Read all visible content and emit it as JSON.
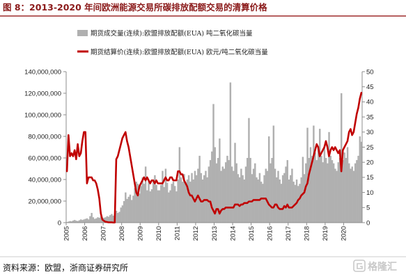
{
  "figure": {
    "source": "资料来源：欧盟，浙商证券研究所",
    "watermark": "格隆汇"
  },
  "colors": {
    "title": "#8b1a1a",
    "title_rule": "#9e2a2b",
    "volume": "#b0b0b0",
    "price": "#c00000",
    "axis": "#8c8c8c"
  },
  "chart_data": {
    "type": "bar",
    "title": "图 8：2013-2020 年间欧洲能源交易所碳排放配额交易的清算价格",
    "legend": "top-left",
    "grid": false,
    "x_axis": {
      "min": "2005-01",
      "max": "2021-01",
      "ticks": [
        "2005",
        "2006",
        "2007",
        "2008",
        "2009",
        "2010",
        "2011",
        "2012",
        "2013",
        "2014",
        "2015",
        "2016",
        "2017",
        "2018",
        "2019",
        "2020"
      ]
    },
    "y_left": {
      "min": 0,
      "max": 140000000,
      "ticks": [
        "0",
        "20,000,000",
        "40,000,000",
        "60,000,000",
        "80,000,000",
        "100,000,000",
        "120,000,000",
        "140,000,000"
      ]
    },
    "y_right": {
      "min": 0,
      "max": 50,
      "ticks": [
        "0",
        "5",
        "10",
        "15",
        "20",
        "25",
        "30",
        "35",
        "40",
        "45",
        "50"
      ]
    },
    "x": [
      "2005-01",
      "2005-02",
      "2005-03",
      "2005-04",
      "2005-05",
      "2005-06",
      "2005-07",
      "2005-08",
      "2005-09",
      "2005-10",
      "2005-11",
      "2005-12",
      "2006-01",
      "2006-02",
      "2006-03",
      "2006-04",
      "2006-05",
      "2006-06",
      "2006-07",
      "2006-08",
      "2006-09",
      "2006-10",
      "2006-11",
      "2006-12",
      "2007-01",
      "2007-02",
      "2007-03",
      "2007-04",
      "2007-05",
      "2007-06",
      "2007-07",
      "2007-08",
      "2007-09",
      "2007-10",
      "2007-11",
      "2007-12",
      "2008-01",
      "2008-02",
      "2008-03",
      "2008-04",
      "2008-05",
      "2008-06",
      "2008-07",
      "2008-08",
      "2008-09",
      "2008-10",
      "2008-11",
      "2008-12",
      "2009-01",
      "2009-02",
      "2009-03",
      "2009-04",
      "2009-05",
      "2009-06",
      "2009-07",
      "2009-08",
      "2009-09",
      "2009-10",
      "2009-11",
      "2009-12",
      "2010-01",
      "2010-02",
      "2010-03",
      "2010-04",
      "2010-05",
      "2010-06",
      "2010-07",
      "2010-08",
      "2010-09",
      "2010-10",
      "2010-11",
      "2010-12",
      "2011-01",
      "2011-02",
      "2011-03",
      "2011-04",
      "2011-05",
      "2011-06",
      "2011-07",
      "2011-08",
      "2011-09",
      "2011-10",
      "2011-11",
      "2011-12",
      "2012-01",
      "2012-02",
      "2012-03",
      "2012-04",
      "2012-05",
      "2012-06",
      "2012-07",
      "2012-08",
      "2012-09",
      "2012-10",
      "2012-11",
      "2012-12",
      "2013-01",
      "2013-02",
      "2013-03",
      "2013-04",
      "2013-05",
      "2013-06",
      "2013-07",
      "2013-08",
      "2013-09",
      "2013-10",
      "2013-11",
      "2013-12",
      "2014-01",
      "2014-02",
      "2014-03",
      "2014-04",
      "2014-05",
      "2014-06",
      "2014-07",
      "2014-08",
      "2014-09",
      "2014-10",
      "2014-11",
      "2014-12",
      "2015-01",
      "2015-02",
      "2015-03",
      "2015-04",
      "2015-05",
      "2015-06",
      "2015-07",
      "2015-08",
      "2015-09",
      "2015-10",
      "2015-11",
      "2015-12",
      "2016-01",
      "2016-02",
      "2016-03",
      "2016-04",
      "2016-05",
      "2016-06",
      "2016-07",
      "2016-08",
      "2016-09",
      "2016-10",
      "2016-11",
      "2016-12",
      "2017-01",
      "2017-02",
      "2017-03",
      "2017-04",
      "2017-05",
      "2017-06",
      "2017-07",
      "2017-08",
      "2017-09",
      "2017-10",
      "2017-11",
      "2017-12",
      "2018-01",
      "2018-02",
      "2018-03",
      "2018-04",
      "2018-05",
      "2018-06",
      "2018-07",
      "2018-08",
      "2018-09",
      "2018-10",
      "2018-11",
      "2018-12",
      "2019-01",
      "2019-02",
      "2019-03",
      "2019-04",
      "2019-05",
      "2019-06",
      "2019-07",
      "2019-08",
      "2019-09",
      "2019-10",
      "2019-11",
      "2019-12",
      "2020-01",
      "2020-02",
      "2020-03",
      "2020-04",
      "2020-05",
      "2020-06",
      "2020-07",
      "2020-08",
      "2020-09",
      "2020-10",
      "2020-11",
      "2020-12"
    ],
    "series": [
      {
        "name": "期货成交量(连续):欧盟排放配额(EUA) 吨二氧化碳当量",
        "type": "bar",
        "axis": "left",
        "values": [
          500000,
          1000000,
          1500000,
          1200000,
          2000000,
          2500000,
          1800000,
          1500000,
          2200000,
          3000000,
          2500000,
          3000000,
          3500000,
          4000000,
          3000000,
          6000000,
          9000000,
          5000000,
          3500000,
          4000000,
          5000000,
          4500000,
          6000000,
          4000000,
          4500000,
          5000000,
          6000000,
          5500000,
          7000000,
          8000000,
          6500000,
          8000000,
          11000000,
          9000000,
          10000000,
          14000000,
          16000000,
          20000000,
          28000000,
          22000000,
          24000000,
          26000000,
          21000000,
          25000000,
          32000000,
          38000000,
          36000000,
          27000000,
          34000000,
          42000000,
          36000000,
          52000000,
          30000000,
          38000000,
          29000000,
          31000000,
          40000000,
          44000000,
          35000000,
          30000000,
          30000000,
          35000000,
          48000000,
          33000000,
          50000000,
          37000000,
          28000000,
          30000000,
          36000000,
          38000000,
          34000000,
          29000000,
          40000000,
          70000000,
          42000000,
          38000000,
          45000000,
          36000000,
          40000000,
          44000000,
          38000000,
          46000000,
          40000000,
          48000000,
          44000000,
          50000000,
          62000000,
          46000000,
          40000000,
          44000000,
          48000000,
          42000000,
          52000000,
          58000000,
          66000000,
          110000000,
          70000000,
          55000000,
          60000000,
          78000000,
          48000000,
          52000000,
          50000000,
          56000000,
          62000000,
          58000000,
          130000000,
          52000000,
          48000000,
          74000000,
          55000000,
          45000000,
          42000000,
          50000000,
          44000000,
          40000000,
          52000000,
          60000000,
          97000000,
          60000000,
          45000000,
          50000000,
          55000000,
          42000000,
          40000000,
          46000000,
          38000000,
          36000000,
          44000000,
          50000000,
          48000000,
          80000000,
          55000000,
          60000000,
          90000000,
          50000000,
          42000000,
          48000000,
          40000000,
          36000000,
          44000000,
          46000000,
          52000000,
          58000000,
          40000000,
          44000000,
          50000000,
          38000000,
          35000000,
          40000000,
          34000000,
          36000000,
          42000000,
          61000000,
          45000000,
          55000000,
          88000000,
          60000000,
          70000000,
          62000000,
          90000000,
          65000000,
          58000000,
          70000000,
          87000000,
          62000000,
          56000000,
          70000000,
          60000000,
          55000000,
          84000000,
          62000000,
          58000000,
          55000000,
          50000000,
          48000000,
          56000000,
          60000000,
          120000000,
          58000000,
          65000000,
          60000000,
          70000000,
          55000000,
          50000000,
          52000000,
          48000000,
          55000000,
          58000000,
          62000000,
          80000000,
          75000000
        ]
      },
      {
        "name": "期货结算价(连续):欧盟排放配额(EUA) 欧元/吨二氧化碳当量",
        "type": "line",
        "axis": "right",
        "values": [
          17,
          29,
          22,
          23,
          22,
          24,
          21,
          26,
          22,
          23,
          27,
          30,
          30,
          13,
          15,
          15,
          15,
          14,
          14,
          13,
          11,
          8,
          3,
          1,
          0.6,
          0.3,
          0.2,
          0.1,
          0.1,
          0.1,
          0.05,
          0.03,
          21,
          22,
          24,
          26,
          28,
          29,
          30,
          27,
          25,
          22,
          19,
          16,
          13,
          10,
          9,
          12,
          13,
          14,
          15,
          14,
          15,
          14,
          13,
          14,
          14,
          13,
          14,
          13,
          13,
          13,
          13,
          14,
          15,
          14,
          14,
          15,
          15,
          14,
          14,
          14,
          17,
          17,
          16,
          16,
          14,
          13,
          12,
          10,
          9,
          9,
          8,
          7,
          8,
          9,
          8,
          7,
          7,
          7.5,
          7.5,
          7.5,
          7,
          7,
          5,
          4,
          3,
          4.5,
          4.5,
          3,
          4,
          4.5,
          4.5,
          5,
          5,
          5,
          5,
          5,
          5,
          6,
          6,
          6,
          5.5,
          6,
          6,
          6.5,
          6.5,
          6.5,
          7,
          7,
          7,
          7.5,
          7.5,
          7.5,
          7.5,
          7.5,
          8,
          8,
          8,
          8,
          7,
          6,
          5.5,
          5,
          5,
          6,
          6,
          5,
          4.5,
          4.5,
          4.5,
          5.5,
          5,
          6,
          5,
          5,
          5,
          5.5,
          6,
          6.5,
          7.5,
          8,
          9,
          9.5,
          10,
          12,
          13,
          16,
          18,
          20,
          22,
          24,
          26,
          25,
          22,
          23,
          24,
          25,
          27,
          25,
          22,
          24,
          25,
          24,
          25,
          24,
          23,
          24,
          17,
          24,
          25,
          26,
          27,
          30,
          31,
          29,
          30,
          33,
          36,
          38,
          41,
          43
        ]
      }
    ]
  }
}
